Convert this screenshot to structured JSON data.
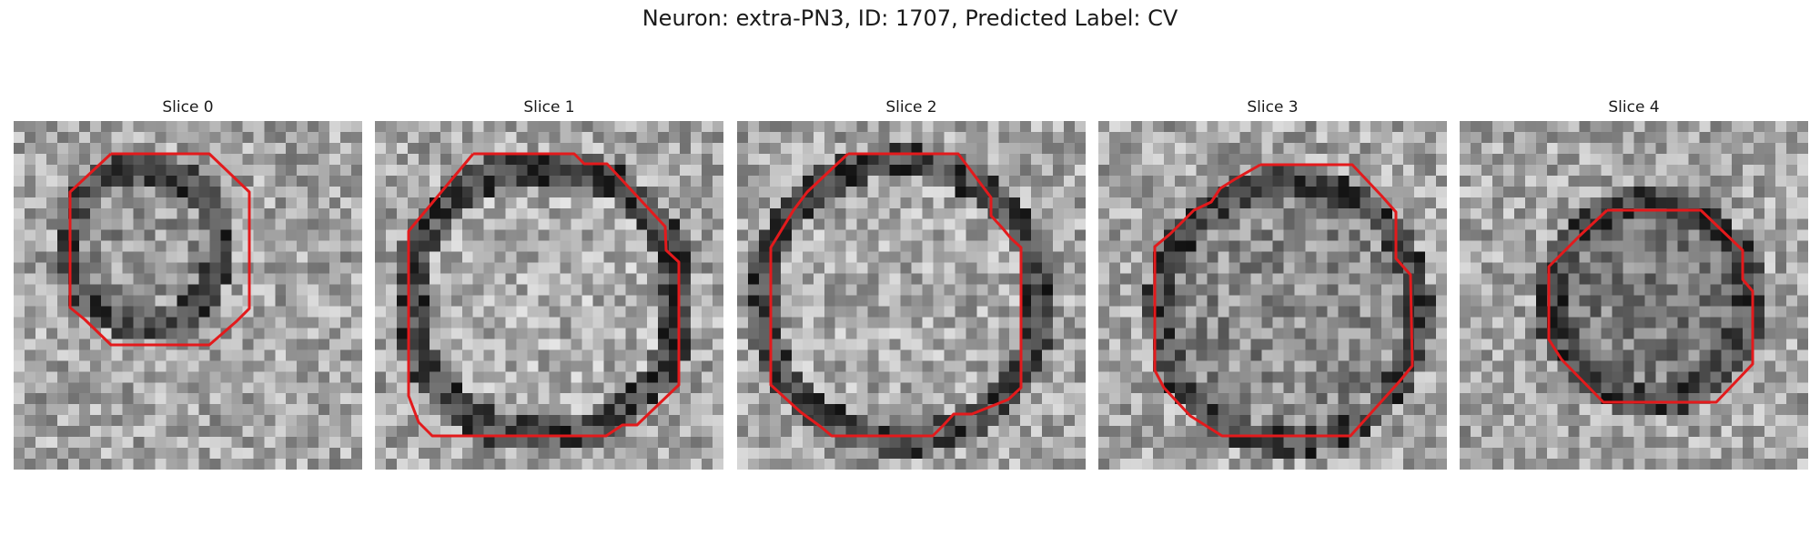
{
  "figure": {
    "title": "Neuron: extra-PN3, ID: 1707, Predicted Label: CV"
  },
  "slices": [
    {
      "label": "Slice 0"
    },
    {
      "label": "Slice 1"
    },
    {
      "label": "Slice 2"
    },
    {
      "label": "Slice 3"
    },
    {
      "label": "Slice 4"
    }
  ],
  "colors": {
    "contour": "#e31a1c",
    "colormap": "grayscale"
  }
}
